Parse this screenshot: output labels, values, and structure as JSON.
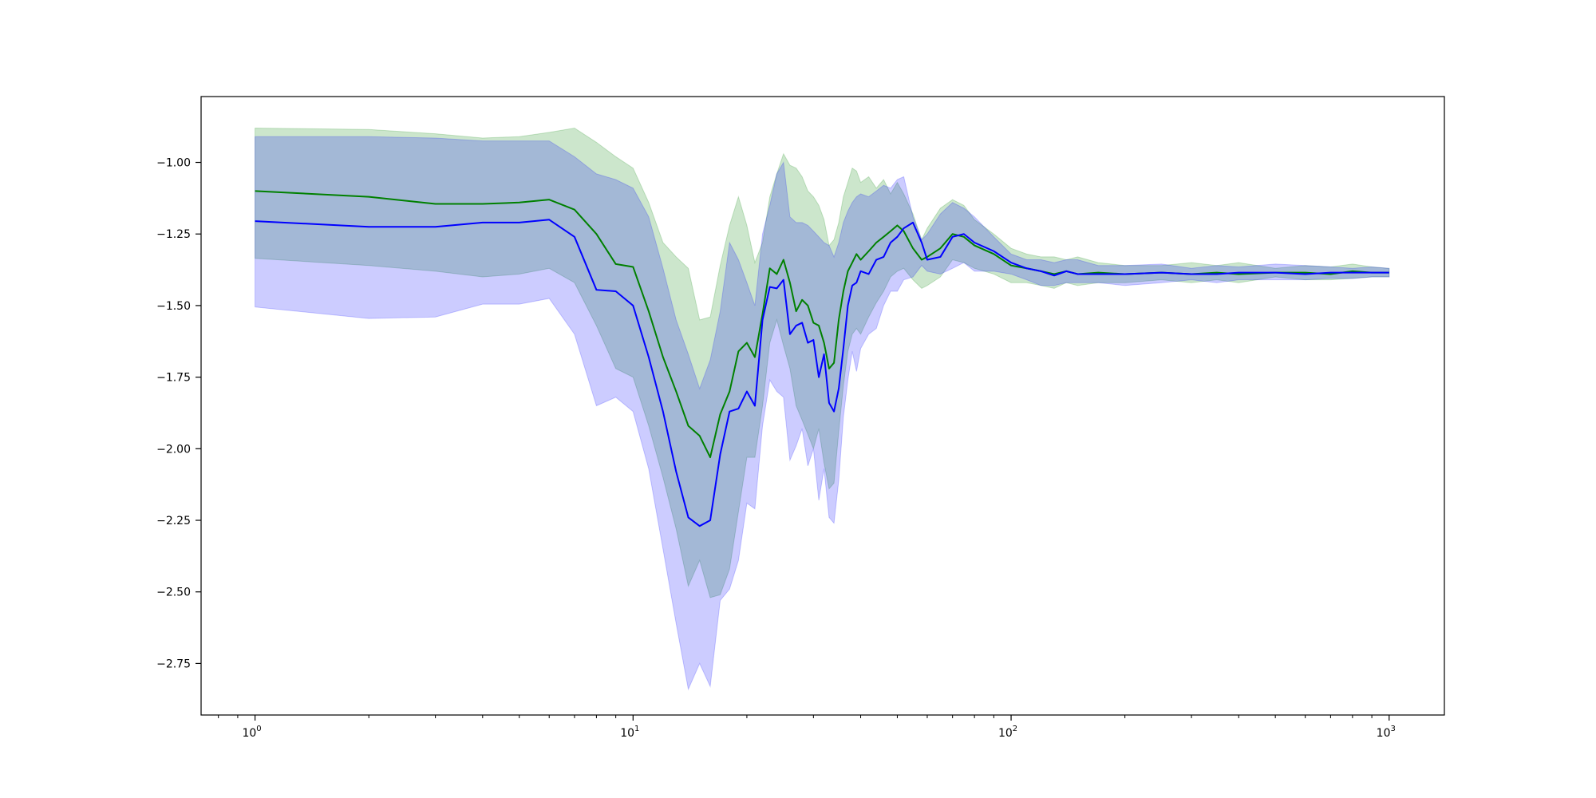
{
  "chart_data": {
    "type": "line",
    "title": "",
    "xlabel": "",
    "ylabel": "",
    "x_scale": "log",
    "xlim": [
      0.72,
      1400
    ],
    "ylim": [
      -2.93,
      -0.77
    ],
    "grid": false,
    "legend": null,
    "x_ticks": [
      {
        "value": 1,
        "base": "10",
        "exp": "0"
      },
      {
        "value": 10,
        "base": "10",
        "exp": "1"
      },
      {
        "value": 100,
        "base": "10",
        "exp": "2"
      },
      {
        "value": 1000,
        "base": "10",
        "exp": "3"
      }
    ],
    "y_ticks": [
      {
        "value": -1.0,
        "label": "−1.00"
      },
      {
        "value": -1.25,
        "label": "−1.25"
      },
      {
        "value": -1.5,
        "label": "−1.50"
      },
      {
        "value": -1.75,
        "label": "−1.75"
      },
      {
        "value": -2.0,
        "label": "−2.00"
      },
      {
        "value": -2.25,
        "label": "−2.25"
      },
      {
        "value": -2.5,
        "label": "−2.50"
      },
      {
        "value": -2.75,
        "label": "−2.75"
      }
    ],
    "series": [
      {
        "color": "#008000",
        "band_color": "#008000",
        "band_opacity": 0.2,
        "x": [
          1,
          2,
          3,
          4,
          5,
          6,
          7,
          8,
          9,
          10,
          11,
          12,
          13,
          14,
          15,
          16,
          17,
          18,
          19,
          20,
          21,
          22,
          23,
          24,
          25,
          26,
          27,
          28,
          29,
          30,
          31,
          32,
          33,
          34,
          35,
          36,
          37,
          38,
          39,
          40,
          42,
          44,
          46,
          48,
          50,
          52,
          55,
          58,
          60,
          65,
          70,
          75,
          80,
          90,
          100,
          110,
          120,
          130,
          140,
          150,
          170,
          200,
          250,
          300,
          350,
          400,
          500,
          600,
          700,
          800,
          900,
          1000
        ],
        "mean": [
          -1.1,
          -1.12,
          -1.145,
          -1.145,
          -1.14,
          -1.13,
          -1.165,
          -1.25,
          -1.355,
          -1.365,
          -1.52,
          -1.68,
          -1.8,
          -1.92,
          -1.955,
          -2.03,
          -1.88,
          -1.8,
          -1.66,
          -1.63,
          -1.68,
          -1.53,
          -1.37,
          -1.39,
          -1.34,
          -1.42,
          -1.52,
          -1.48,
          -1.5,
          -1.56,
          -1.57,
          -1.63,
          -1.72,
          -1.7,
          -1.55,
          -1.45,
          -1.38,
          -1.35,
          -1.32,
          -1.34,
          -1.31,
          -1.28,
          -1.26,
          -1.24,
          -1.22,
          -1.24,
          -1.3,
          -1.34,
          -1.33,
          -1.3,
          -1.25,
          -1.26,
          -1.29,
          -1.32,
          -1.36,
          -1.37,
          -1.38,
          -1.39,
          -1.38,
          -1.39,
          -1.385,
          -1.39,
          -1.385,
          -1.39,
          -1.385,
          -1.39,
          -1.385,
          -1.385,
          -1.39,
          -1.38,
          -1.385,
          -1.385
        ],
        "upper": [
          -0.88,
          -0.885,
          -0.9,
          -0.915,
          -0.91,
          -0.895,
          -0.88,
          -0.93,
          -0.98,
          -1.02,
          -1.14,
          -1.28,
          -1.33,
          -1.37,
          -1.55,
          -1.54,
          -1.36,
          -1.22,
          -1.12,
          -1.22,
          -1.35,
          -1.28,
          -1.12,
          -1.04,
          -0.97,
          -1.01,
          -1.02,
          -1.05,
          -1.1,
          -1.12,
          -1.15,
          -1.2,
          -1.29,
          -1.27,
          -1.21,
          -1.12,
          -1.07,
          -1.02,
          -1.03,
          -1.07,
          -1.05,
          -1.09,
          -1.06,
          -1.11,
          -1.07,
          -1.11,
          -1.18,
          -1.27,
          -1.23,
          -1.16,
          -1.13,
          -1.15,
          -1.2,
          -1.25,
          -1.3,
          -1.32,
          -1.33,
          -1.33,
          -1.34,
          -1.33,
          -1.35,
          -1.36,
          -1.36,
          -1.35,
          -1.36,
          -1.35,
          -1.37,
          -1.36,
          -1.365,
          -1.355,
          -1.365,
          -1.37
        ],
        "lower": [
          -1.335,
          -1.36,
          -1.38,
          -1.4,
          -1.39,
          -1.37,
          -1.42,
          -1.57,
          -1.72,
          -1.75,
          -1.92,
          -2.1,
          -2.28,
          -2.48,
          -2.39,
          -2.52,
          -2.51,
          -2.42,
          -2.22,
          -2.03,
          -2.03,
          -1.85,
          -1.63,
          -1.55,
          -1.64,
          -1.72,
          -1.85,
          -1.9,
          -1.95,
          -2.0,
          -1.93,
          -2.05,
          -2.14,
          -2.12,
          -1.94,
          -1.78,
          -1.66,
          -1.6,
          -1.58,
          -1.6,
          -1.54,
          -1.49,
          -1.45,
          -1.4,
          -1.38,
          -1.37,
          -1.41,
          -1.44,
          -1.43,
          -1.4,
          -1.34,
          -1.35,
          -1.37,
          -1.39,
          -1.42,
          -1.42,
          -1.43,
          -1.44,
          -1.42,
          -1.43,
          -1.42,
          -1.42,
          -1.41,
          -1.42,
          -1.41,
          -1.42,
          -1.4,
          -1.41,
          -1.41,
          -1.405,
          -1.4,
          -1.4
        ]
      },
      {
        "color": "#0000ff",
        "band_color": "#0000ff",
        "band_opacity": 0.2,
        "x": [
          1,
          2,
          3,
          4,
          5,
          6,
          7,
          8,
          9,
          10,
          11,
          12,
          13,
          14,
          15,
          16,
          17,
          18,
          19,
          20,
          21,
          22,
          23,
          24,
          25,
          26,
          27,
          28,
          29,
          30,
          31,
          32,
          33,
          34,
          35,
          36,
          37,
          38,
          39,
          40,
          42,
          44,
          46,
          48,
          50,
          52,
          55,
          58,
          60,
          65,
          70,
          75,
          80,
          90,
          100,
          110,
          120,
          130,
          140,
          150,
          170,
          200,
          250,
          300,
          350,
          400,
          500,
          600,
          700,
          800,
          900,
          1000
        ],
        "mean": [
          -1.205,
          -1.225,
          -1.225,
          -1.21,
          -1.21,
          -1.2,
          -1.26,
          -1.445,
          -1.45,
          -1.5,
          -1.68,
          -1.87,
          -2.08,
          -2.24,
          -2.27,
          -2.25,
          -2.02,
          -1.87,
          -1.86,
          -1.8,
          -1.85,
          -1.55,
          -1.435,
          -1.44,
          -1.41,
          -1.6,
          -1.57,
          -1.56,
          -1.63,
          -1.62,
          -1.75,
          -1.67,
          -1.84,
          -1.87,
          -1.79,
          -1.65,
          -1.5,
          -1.43,
          -1.42,
          -1.38,
          -1.39,
          -1.34,
          -1.33,
          -1.28,
          -1.26,
          -1.23,
          -1.21,
          -1.28,
          -1.34,
          -1.33,
          -1.26,
          -1.25,
          -1.28,
          -1.31,
          -1.35,
          -1.37,
          -1.38,
          -1.395,
          -1.38,
          -1.39,
          -1.39,
          -1.39,
          -1.385,
          -1.39,
          -1.39,
          -1.385,
          -1.385,
          -1.39,
          -1.385,
          -1.385,
          -1.385,
          -1.385
        ],
        "upper": [
          -0.91,
          -0.91,
          -0.915,
          -0.925,
          -0.925,
          -0.925,
          -0.98,
          -1.04,
          -1.06,
          -1.09,
          -1.19,
          -1.37,
          -1.55,
          -1.67,
          -1.79,
          -1.69,
          -1.52,
          -1.28,
          -1.34,
          -1.42,
          -1.5,
          -1.25,
          -1.15,
          -1.04,
          -1.0,
          -1.19,
          -1.21,
          -1.21,
          -1.22,
          -1.24,
          -1.26,
          -1.28,
          -1.29,
          -1.33,
          -1.28,
          -1.21,
          -1.17,
          -1.14,
          -1.12,
          -1.11,
          -1.12,
          -1.1,
          -1.08,
          -1.09,
          -1.06,
          -1.05,
          -1.19,
          -1.27,
          -1.25,
          -1.18,
          -1.14,
          -1.16,
          -1.19,
          -1.26,
          -1.32,
          -1.34,
          -1.34,
          -1.35,
          -1.34,
          -1.34,
          -1.36,
          -1.36,
          -1.355,
          -1.37,
          -1.36,
          -1.365,
          -1.355,
          -1.36,
          -1.365,
          -1.37,
          -1.365,
          -1.37
        ],
        "lower": [
          -1.505,
          -1.545,
          -1.54,
          -1.495,
          -1.495,
          -1.475,
          -1.6,
          -1.85,
          -1.82,
          -1.87,
          -2.07,
          -2.35,
          -2.61,
          -2.84,
          -2.75,
          -2.83,
          -2.53,
          -2.49,
          -2.39,
          -2.19,
          -2.21,
          -1.92,
          -1.76,
          -1.8,
          -1.82,
          -2.04,
          -1.99,
          -1.93,
          -2.06,
          -2.0,
          -2.18,
          -2.07,
          -2.24,
          -2.26,
          -2.11,
          -1.89,
          -1.76,
          -1.66,
          -1.73,
          -1.65,
          -1.6,
          -1.58,
          -1.5,
          -1.45,
          -1.45,
          -1.41,
          -1.4,
          -1.36,
          -1.38,
          -1.39,
          -1.37,
          -1.35,
          -1.38,
          -1.38,
          -1.39,
          -1.41,
          -1.43,
          -1.43,
          -1.42,
          -1.42,
          -1.42,
          -1.43,
          -1.42,
          -1.41,
          -1.42,
          -1.41,
          -1.41,
          -1.41,
          -1.405,
          -1.405,
          -1.4,
          -1.4
        ]
      }
    ]
  }
}
